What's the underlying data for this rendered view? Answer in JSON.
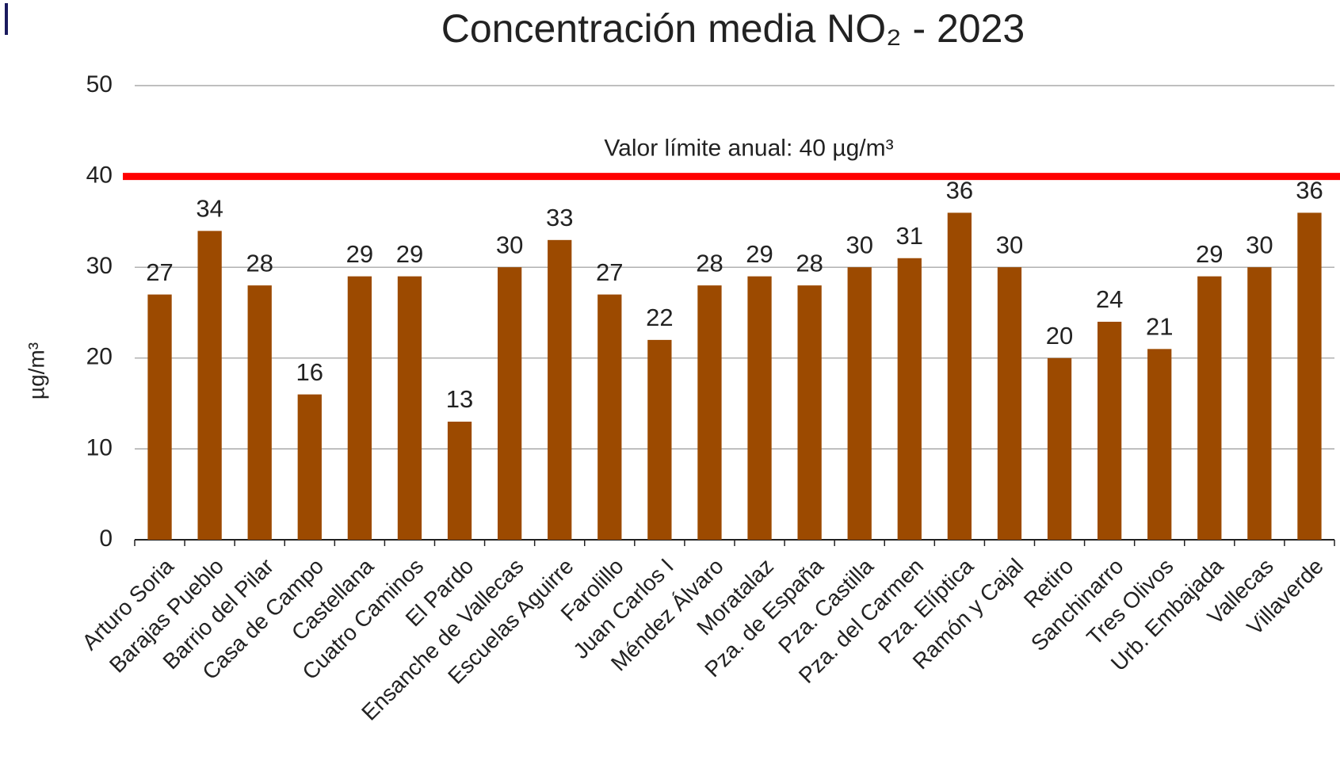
{
  "chart_data": {
    "type": "bar",
    "title": "Concentración media NO₂ - 2023",
    "y_label": "µg/m³",
    "categories": [
      "Arturo Soria",
      "Barajas Pueblo",
      "Barrio del Pilar",
      "Casa de Campo",
      "Castellana",
      "Cuatro Caminos",
      "El Pardo",
      "Ensanche de Vallecas",
      "Escuelas Aguirre",
      "Farolillo",
      "Juan Carlos I",
      "Méndez Álvaro",
      "Moratalaz",
      "Pza. de España",
      "Pza. Castilla",
      "Pza. del Carmen",
      "Pza. Elíptica",
      "Ramón y Cajal",
      "Retiro",
      "Sanchinarro",
      "Tres Olivos",
      "Urb. Embajada",
      "Vallecas",
      "Villaverde"
    ],
    "values": [
      27,
      34,
      28,
      16,
      29,
      29,
      13,
      30,
      33,
      27,
      22,
      28,
      29,
      28,
      30,
      31,
      36,
      30,
      20,
      24,
      21,
      29,
      30,
      36
    ],
    "color": "#9c4a00",
    "ylim": [
      0,
      50
    ],
    "yticks": [
      0,
      10,
      20,
      30,
      40,
      50
    ],
    "grid": true,
    "limit_line": {
      "value": 40,
      "label": "Valor límite anual: 40 µg/m³",
      "color": "#ff0000"
    }
  }
}
